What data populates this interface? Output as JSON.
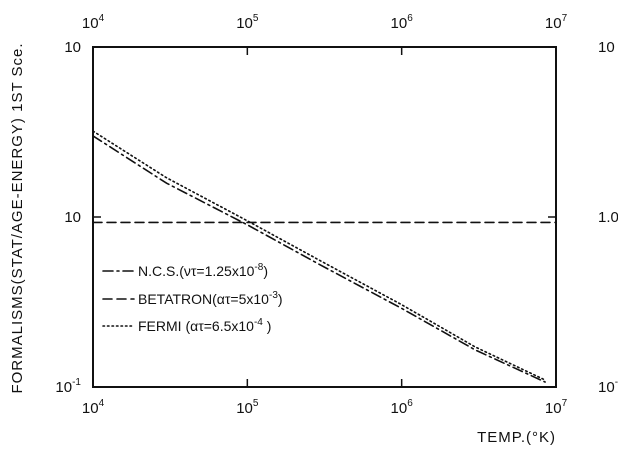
{
  "chart_data": {
    "type": "line",
    "title": "",
    "xlabel": "TEMP.(°K)",
    "ylabel": "FORMALISMS(STAT/AGE-ENERGY) 1ST Sce.",
    "xscale": "log",
    "yscale": "log",
    "xlim": [
      10000,
      10000000
    ],
    "ylim": [
      0.1,
      10
    ],
    "x_ticks": [
      {
        "base": "10",
        "exp": "4"
      },
      {
        "base": "10",
        "exp": "5"
      },
      {
        "base": "10",
        "exp": "6"
      },
      {
        "base": "10",
        "exp": "7"
      }
    ],
    "y_ticks_left": [
      {
        "value": 10,
        "base": "10",
        "exp": ""
      },
      {
        "value": 1,
        "base": "10",
        "exp": ""
      },
      {
        "value": 0.1,
        "base": "10",
        "exp": "-1"
      }
    ],
    "y_ticks_right": [
      {
        "value": 10,
        "label": "10"
      },
      {
        "value": 1,
        "label": "1.0"
      },
      {
        "value": 0.1,
        "label": "10",
        "exp": "-"
      }
    ],
    "series": [
      {
        "name": "N.C.S.(ντ=1.25x10⁻⁸)",
        "legend_text": "N.C.S.(ντ=1.25x10",
        "legend_exp": "-8",
        "legend_close": ")",
        "style": "dashdot",
        "x": [
          10000,
          30000,
          100000,
          300000,
          1000000,
          3000000,
          8500000
        ],
        "y": [
          3.0,
          1.58,
          0.9,
          0.52,
          0.29,
          0.165,
          0.107
        ]
      },
      {
        "name": "BETATRON(ατ=5x10⁻³)",
        "legend_text": "BETATRON(ατ=5x10",
        "legend_exp": "-3",
        "legend_close": ")",
        "style": "dashed",
        "x": [
          10000,
          10000000
        ],
        "y": [
          0.93,
          0.93
        ]
      },
      {
        "name": "FERMI (ατ=6.5x10⁻⁴ )",
        "legend_text": "FERMI (ατ=6.5x10",
        "legend_exp": "-4",
        "legend_close": " )",
        "style": "dotted",
        "x": [
          10000,
          30000,
          100000,
          300000,
          1000000,
          3000000,
          8500000
        ],
        "y": [
          3.2,
          1.7,
          0.95,
          0.55,
          0.305,
          0.172,
          0.11
        ]
      }
    ],
    "grid": false,
    "legend_position": "bottom-left"
  },
  "colors": {
    "ink": "#111111",
    "background": "#ffffff"
  }
}
